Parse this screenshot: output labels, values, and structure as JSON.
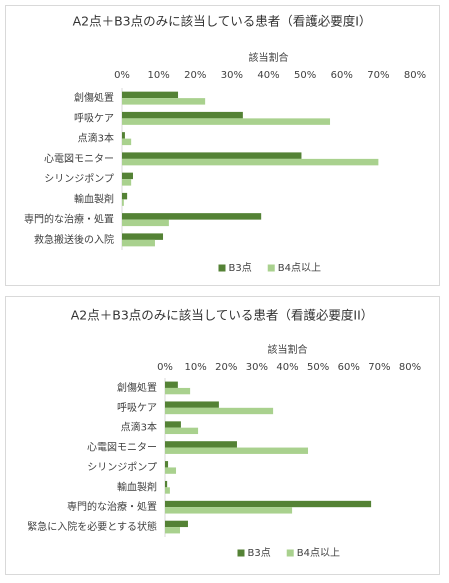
{
  "chart_data": [
    {
      "type": "barh",
      "title": "A2点＋B3点のみに該当している患者（看護必要度I）",
      "xlabel": "該当割合",
      "categories": [
        "創傷処置",
        "呼吸ケア",
        "点滴3本",
        "心電図モニター",
        "シリンジポンプ",
        "輸血製剤",
        "専門的な治療・処置",
        "救急搬送後の入院"
      ],
      "series": [
        {
          "name": "B3点",
          "color": "#548235",
          "values": [
            15.3,
            33,
            0.8,
            49,
            3,
            1.4,
            38,
            11.2
          ]
        },
        {
          "name": "B4点以上",
          "color": "#a9d18e",
          "values": [
            22.7,
            56.8,
            2.5,
            70,
            2.5,
            0.5,
            12.8,
            9
          ]
        }
      ],
      "xlim": [
        0,
        80
      ],
      "xticks": [
        {
          "value": 0,
          "label": "0%"
        },
        {
          "value": 10,
          "label": "10%"
        },
        {
          "value": 20,
          "label": "20%"
        },
        {
          "value": 30,
          "label": "30%"
        },
        {
          "value": 40,
          "label": "40%"
        },
        {
          "value": 50,
          "label": "50%"
        },
        {
          "value": 60,
          "label": "60%"
        },
        {
          "value": 70,
          "label": "70%"
        },
        {
          "value": 80,
          "label": "80%"
        }
      ],
      "legend": "bottom"
    },
    {
      "type": "barh",
      "title": "A2点＋B3点のみに該当している患者（看護必要度II）",
      "xlabel": "該当割合",
      "categories": [
        "創傷処置",
        "呼吸ケア",
        "点滴3本",
        "心電図モニター",
        "シリンジポンプ",
        "輸血製剤",
        "専門的な治療・処置",
        "緊急に入院を必要とする状態"
      ],
      "series": [
        {
          "name": "B3点",
          "color": "#548235",
          "values": [
            4.2,
            17.6,
            5.2,
            23.5,
            1,
            0.7,
            67.3,
            7.5
          ]
        },
        {
          "name": "B4点以上",
          "color": "#a9d18e",
          "values": [
            8.2,
            35.3,
            10.8,
            46.7,
            3.6,
            1.6,
            41.5,
            4.9
          ]
        }
      ],
      "xlim": [
        0,
        80
      ],
      "xticks": [
        {
          "value": 0,
          "label": "0%"
        },
        {
          "value": 10,
          "label": "10%"
        },
        {
          "value": 20,
          "label": "20%"
        },
        {
          "value": 30,
          "label": "30%"
        },
        {
          "value": 40,
          "label": "40%"
        },
        {
          "value": 50,
          "label": "50%"
        },
        {
          "value": 60,
          "label": "60%"
        },
        {
          "value": 70,
          "label": "70%"
        },
        {
          "value": 80,
          "label": "80%"
        }
      ],
      "legend": "bottom"
    }
  ]
}
